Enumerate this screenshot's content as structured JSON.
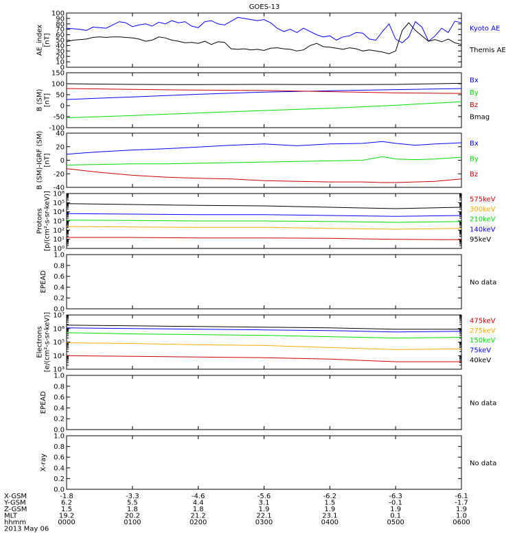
{
  "title": "GOES-13",
  "colors": {
    "black": "#000000",
    "blue": "#0000ff",
    "green": "#00dd00",
    "red": "#cc0000",
    "orange": "#ffaa00"
  },
  "chart_data": [
    {
      "type": "line",
      "id": "ae",
      "ylabel": [
        "AE_index",
        "[nT]"
      ],
      "ylim": [
        0,
        100
      ],
      "yticks": [
        "0",
        "10",
        "20",
        "30",
        "40",
        "50",
        "60",
        "70",
        "80",
        "90",
        "100"
      ],
      "series": [
        {
          "name": "Kyoto AE",
          "color": "blue",
          "x": [
            0,
            10,
            20,
            30,
            40,
            50,
            60,
            70,
            80,
            90,
            100,
            110,
            120,
            130,
            140,
            150,
            160,
            170,
            180,
            190,
            200,
            210,
            220,
            230,
            240,
            250,
            260,
            270,
            280,
            290,
            300,
            310,
            320,
            330,
            340,
            350,
            360,
            370,
            380,
            390,
            400,
            410,
            420,
            430,
            440,
            450,
            460,
            470,
            480,
            490,
            500,
            510,
            520,
            530,
            540,
            550,
            560,
            570,
            580,
            590,
            600
          ],
          "y": [
            72,
            71,
            70,
            68,
            74,
            73,
            72,
            78,
            84,
            82,
            75,
            78,
            80,
            76,
            83,
            80,
            86,
            82,
            84,
            76,
            73,
            84,
            86,
            80,
            78,
            85,
            92,
            90,
            88,
            86,
            88,
            82,
            72,
            66,
            70,
            64,
            72,
            66,
            60,
            56,
            58,
            50,
            56,
            58,
            64,
            63,
            52,
            50,
            66,
            80,
            52,
            45,
            56,
            84,
            74,
            48,
            58,
            72,
            64,
            85,
            82
          ]
        },
        {
          "name": "Themis AE",
          "color": "black",
          "x": [
            0,
            10,
            20,
            30,
            40,
            50,
            60,
            70,
            80,
            90,
            100,
            110,
            120,
            130,
            140,
            150,
            160,
            170,
            180,
            190,
            200,
            210,
            220,
            230,
            240,
            250,
            260,
            270,
            280,
            290,
            300,
            310,
            320,
            330,
            340,
            350,
            360,
            370,
            380,
            390,
            400,
            410,
            420,
            430,
            440,
            450,
            460,
            470,
            480,
            490,
            500,
            510,
            520,
            530,
            540,
            550,
            560,
            570,
            580,
            590,
            600
          ],
          "y": [
            47,
            50,
            51,
            52,
            55,
            56,
            55,
            56,
            56,
            55,
            54,
            52,
            48,
            50,
            56,
            54,
            50,
            48,
            45,
            46,
            44,
            48,
            42,
            47,
            46,
            34,
            33,
            34,
            32,
            33,
            31,
            35,
            36,
            34,
            33,
            30,
            32,
            40,
            44,
            38,
            37,
            35,
            33,
            36,
            34,
            30,
            32,
            30,
            28,
            25,
            30,
            68,
            82,
            68,
            58,
            48,
            51,
            47,
            52,
            45,
            42
          ]
        }
      ]
    },
    {
      "type": "line",
      "id": "bsm",
      "ylabel": [
        "B (SM)",
        "[nT]"
      ],
      "ylim": [
        -100,
        150
      ],
      "yticks": [
        "-100",
        "-50",
        "0",
        "50",
        "100",
        "150"
      ],
      "series": [
        {
          "name": "Bx",
          "color": "blue",
          "x": [
            0,
            100,
            200,
            300,
            400,
            500,
            600
          ],
          "y": [
            28,
            40,
            52,
            62,
            68,
            73,
            78
          ]
        },
        {
          "name": "By",
          "color": "green",
          "x": [
            0,
            100,
            200,
            300,
            400,
            500,
            600
          ],
          "y": [
            -55,
            -45,
            -33,
            -22,
            -12,
            2,
            18
          ]
        },
        {
          "name": "Bz",
          "color": "red",
          "x": [
            0,
            100,
            200,
            300,
            400,
            500,
            600
          ],
          "y": [
            78,
            74,
            71,
            69,
            64,
            58,
            56
          ]
        },
        {
          "name": "Bmag",
          "color": "black",
          "x": [
            0,
            100,
            200,
            300,
            400,
            500,
            600
          ],
          "y": [
            100,
            97,
            96,
            97,
            96,
            97,
            102
          ]
        }
      ]
    },
    {
      "type": "line",
      "id": "bigrf",
      "ylabel": [
        "B (SM)-IGRF (SM)",
        "[nT]"
      ],
      "ylim": [
        -45,
        45
      ],
      "yticks": [
        "-40",
        "-20",
        "0",
        "20",
        "40"
      ],
      "series": [
        {
          "name": "Bx",
          "color": "blue",
          "x": [
            0,
            50,
            100,
            150,
            200,
            250,
            300,
            350,
            400,
            450,
            480,
            500,
            530,
            560,
            600
          ],
          "y": [
            10,
            14,
            17,
            19,
            22,
            25,
            27,
            24,
            27,
            28,
            31,
            28,
            25,
            27,
            29
          ]
        },
        {
          "name": "By",
          "color": "green",
          "x": [
            0,
            50,
            100,
            150,
            200,
            250,
            300,
            350,
            400,
            450,
            480,
            500,
            530,
            560,
            600
          ],
          "y": [
            -8,
            -7,
            -6,
            -6,
            -5,
            -4,
            -3,
            -2,
            -1,
            0,
            6,
            2,
            1,
            2,
            5
          ]
        },
        {
          "name": "Bz",
          "color": "red",
          "x": [
            0,
            50,
            100,
            150,
            200,
            250,
            300,
            350,
            400,
            450,
            480,
            500,
            530,
            560,
            600
          ],
          "y": [
            -14,
            -20,
            -25,
            -28,
            -30,
            -31,
            -34,
            -35,
            -36,
            -36,
            -37,
            -37,
            -36,
            -35,
            -31
          ]
        }
      ]
    },
    {
      "type": "line",
      "id": "protons",
      "log": true,
      "ylabel": [
        "Protons",
        "[p/(cm²-s-sr-keV)]"
      ],
      "ylim": [
        0,
        6
      ],
      "yticks": [
        "10⁰",
        "10¹",
        "10²",
        "10³",
        "10⁴",
        "10⁵",
        "10⁶"
      ],
      "series": [
        {
          "name": "575keV",
          "color": "red",
          "x": [
            0,
            100,
            200,
            300,
            400,
            500,
            600
          ],
          "y": [
            1.2,
            1.2,
            1.15,
            1.15,
            1.1,
            1.0,
            0.95
          ]
        },
        {
          "name": "300keV",
          "color": "orange",
          "x": [
            0,
            100,
            200,
            300,
            400,
            500,
            600
          ],
          "y": [
            2.4,
            2.35,
            2.3,
            2.3,
            2.2,
            2.1,
            2.2
          ]
        },
        {
          "name": "210keV",
          "color": "green",
          "x": [
            0,
            100,
            200,
            300,
            400,
            500,
            600
          ],
          "y": [
            3.1,
            3.05,
            3.0,
            3.0,
            2.95,
            2.85,
            2.95
          ]
        },
        {
          "name": "140keV",
          "color": "blue",
          "x": [
            0,
            100,
            200,
            300,
            400,
            500,
            600
          ],
          "y": [
            3.8,
            3.75,
            3.7,
            3.7,
            3.6,
            3.5,
            3.6
          ]
        },
        {
          "name": "95keV",
          "color": "black",
          "x": [
            0,
            100,
            200,
            300,
            400,
            500,
            600
          ],
          "y": [
            4.9,
            4.8,
            4.7,
            4.65,
            4.5,
            4.35,
            4.5
          ]
        }
      ]
    },
    {
      "type": "empty",
      "id": "epead1",
      "ylabel": [
        "EPEAD"
      ],
      "ylim": [
        0,
        1
      ],
      "yticks": [
        "0.0",
        "0.2",
        "0.4",
        "0.6",
        "0.8",
        "1.0"
      ],
      "note": "No data"
    },
    {
      "type": "line",
      "id": "electrons",
      "log": true,
      "ylabel": [
        "Electrons",
        "[e/(cm²-s-sr-keV)]"
      ],
      "ylim": [
        3,
        7
      ],
      "yticks": [
        "10³",
        "10⁴",
        "10⁵",
        "10⁶",
        "10⁷"
      ],
      "series": [
        {
          "name": "475keV",
          "color": "red",
          "x": [
            0,
            100,
            200,
            300,
            400,
            500,
            600
          ],
          "y": [
            4.0,
            3.95,
            3.9,
            3.85,
            3.75,
            3.55,
            3.55
          ]
        },
        {
          "name": "275keV",
          "color": "orange",
          "x": [
            0,
            100,
            200,
            300,
            400,
            500,
            600
          ],
          "y": [
            4.95,
            4.9,
            4.8,
            4.75,
            4.6,
            4.45,
            4.5
          ]
        },
        {
          "name": "150keV",
          "color": "green",
          "x": [
            0,
            100,
            200,
            300,
            400,
            500,
            600
          ],
          "y": [
            5.7,
            5.6,
            5.55,
            5.5,
            5.4,
            5.3,
            5.35
          ]
        },
        {
          "name": "75keV",
          "color": "blue",
          "x": [
            0,
            100,
            200,
            300,
            400,
            500,
            600
          ],
          "y": [
            6.05,
            6.0,
            5.95,
            5.9,
            5.85,
            5.75,
            5.8
          ]
        },
        {
          "name": "40keV",
          "color": "black",
          "x": [
            0,
            100,
            200,
            300,
            400,
            500,
            600
          ],
          "y": [
            6.25,
            6.2,
            6.15,
            6.1,
            6.05,
            5.95,
            5.95
          ]
        }
      ]
    },
    {
      "type": "empty",
      "id": "epead2",
      "ylabel": [
        "EPEAD"
      ],
      "ylim": [
        0,
        1
      ],
      "yticks": [
        "0.0",
        "0.2",
        "0.4",
        "0.6",
        "0.8",
        "1.0"
      ],
      "note": "No data"
    },
    {
      "type": "empty",
      "id": "xray",
      "ylabel": [
        "X-ray"
      ],
      "ylim": [
        0,
        1
      ],
      "yticks": [
        "0.0",
        "0.2",
        "0.4",
        "0.6",
        "0.8",
        "1.0"
      ],
      "note": "No data"
    }
  ],
  "footer": {
    "labels": [
      "X-GSM",
      "Y-GSM",
      "Z-GSM",
      "MLT",
      "hhmm",
      "2013 May 06"
    ],
    "columns": [
      [
        "-1.8",
        "6.2",
        "1.5",
        "19.2",
        "0000"
      ],
      [
        "-3.3",
        "5.5",
        "1.8",
        "20.2",
        "0100"
      ],
      [
        "-4.6",
        "4.4",
        "1.8",
        "21.2",
        "0200"
      ],
      [
        "-5.6",
        "3.1",
        "1.9",
        "22.1",
        "0300"
      ],
      [
        "-6.2",
        "1.5",
        "1.9",
        "23.1",
        "0400"
      ],
      [
        "-6.3",
        "-0.1",
        "1.9",
        "0.1",
        "0500"
      ],
      [
        "-6.1",
        "-1.7",
        "1.9",
        "1.0",
        "0600"
      ]
    ]
  }
}
